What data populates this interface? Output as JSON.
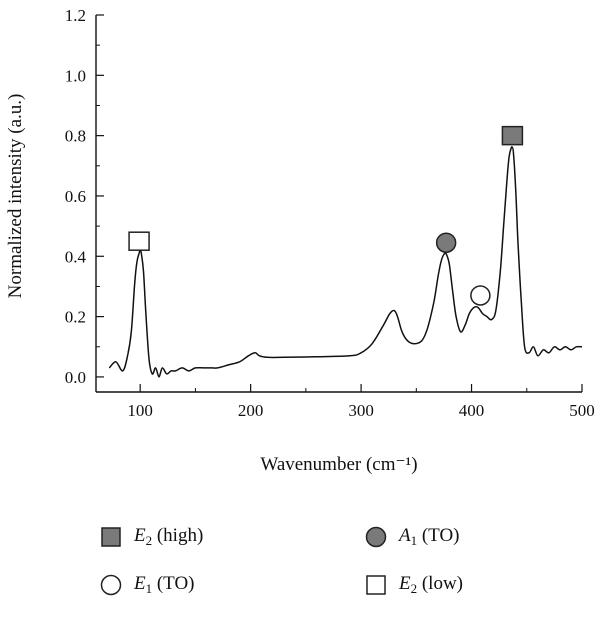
{
  "chart_data": {
    "type": "line",
    "xlabel": "Wavenumber (cm⁻¹)",
    "ylabel": "Normalized intensity (a.u.)",
    "xlim": [
      60,
      500
    ],
    "ylim": [
      -0.05,
      1.2
    ],
    "xticks": [
      100,
      200,
      300,
      400,
      500
    ],
    "yticks": [
      "0.0",
      "0.2",
      "0.4",
      "0.6",
      "0.8",
      "1.0",
      "1.2"
    ],
    "series": [
      {
        "x": [
          72,
          78,
          84,
          88,
          92,
          95,
          97,
          99,
          100,
          101,
          103,
          105,
          108,
          111,
          114,
          117,
          120,
          124,
          128,
          132,
          138,
          144,
          150,
          158,
          165,
          170,
          180,
          190,
          198,
          204,
          208,
          215,
          230,
          260,
          290,
          300,
          310,
          320,
          326,
          330,
          333,
          337,
          342,
          348,
          355,
          360,
          366,
          370,
          373,
          376,
          378,
          380,
          383,
          386,
          390,
          394,
          398,
          402,
          406,
          410,
          414,
          418,
          422,
          426,
          429,
          432,
          434,
          436,
          437,
          438,
          440,
          442,
          445,
          448,
          452,
          456,
          460,
          465,
          470,
          475,
          480,
          485,
          490,
          495,
          500
        ],
        "y": [
          0.03,
          0.05,
          0.02,
          0.06,
          0.15,
          0.31,
          0.38,
          0.41,
          0.42,
          0.41,
          0.35,
          0.22,
          0.06,
          0.01,
          0.03,
          0.0,
          0.03,
          0.01,
          0.02,
          0.02,
          0.03,
          0.02,
          0.03,
          0.03,
          0.03,
          0.03,
          0.04,
          0.05,
          0.07,
          0.08,
          0.07,
          0.065,
          0.065,
          0.067,
          0.07,
          0.08,
          0.11,
          0.17,
          0.21,
          0.22,
          0.2,
          0.15,
          0.12,
          0.11,
          0.12,
          0.16,
          0.25,
          0.34,
          0.39,
          0.41,
          0.4,
          0.37,
          0.28,
          0.2,
          0.15,
          0.17,
          0.21,
          0.23,
          0.23,
          0.21,
          0.2,
          0.19,
          0.22,
          0.35,
          0.5,
          0.65,
          0.73,
          0.76,
          0.76,
          0.74,
          0.62,
          0.45,
          0.25,
          0.1,
          0.08,
          0.1,
          0.07,
          0.09,
          0.08,
          0.1,
          0.09,
          0.1,
          0.09,
          0.1,
          0.1
        ]
      }
    ],
    "markers": [
      {
        "symbol": "filled-square",
        "x": 437,
        "y": 0.8
      },
      {
        "symbol": "filled-circle",
        "x": 377,
        "y": 0.445
      },
      {
        "symbol": "open-circle",
        "x": 408,
        "y": 0.27
      },
      {
        "symbol": "open-square",
        "x": 99,
        "y": 0.45
      }
    ],
    "legend": [
      {
        "symbol": "filled-square",
        "mode": "E",
        "sub": "2",
        "tail": " (high)"
      },
      {
        "symbol": "filled-circle",
        "mode": "A",
        "sub": "1",
        "tail": " (TO)"
      },
      {
        "symbol": "open-circle",
        "mode": "E",
        "sub": "1",
        "tail": " (TO)"
      },
      {
        "symbol": "open-square",
        "mode": "E",
        "sub": "2",
        "tail": " (low)"
      }
    ],
    "colors": {
      "line": "#111111",
      "marker_fill": "#7a7a7a",
      "marker_stroke": "#222222"
    },
    "grid": false,
    "legend_position": "below"
  }
}
